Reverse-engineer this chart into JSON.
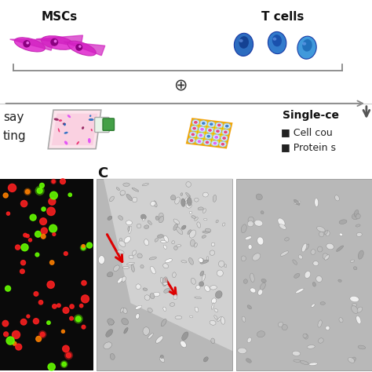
{
  "bg_color": "#ffffff",
  "mscs_label": "MSCs",
  "tcells_label": "T cells",
  "plus_symbol": "⊕",
  "panel_c_label": "C",
  "bullet1": "■ Cell cou",
  "bullet2": "■ Protein s",
  "single_ce_label": "Single-ce",
  "assay_label": "say",
  "counting_label": "ting",
  "line_color": "#888888",
  "label_fontsize": 11,
  "small_fontsize": 9,
  "fig_width": 4.74,
  "fig_height": 4.74,
  "dpi": 100
}
